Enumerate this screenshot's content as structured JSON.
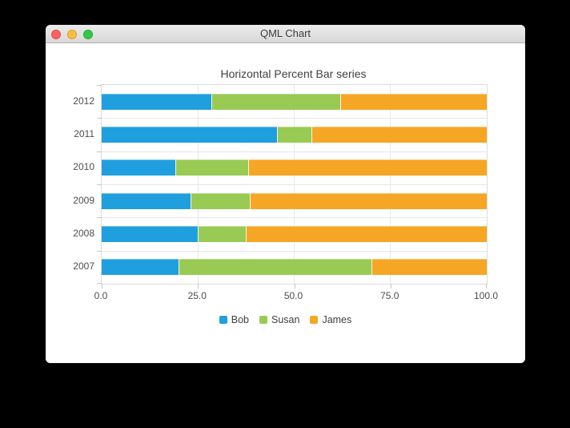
{
  "window": {
    "title": "QML Chart",
    "traffic_lights": [
      {
        "name": "close",
        "color": "#fc615d"
      },
      {
        "name": "minimize",
        "color": "#fdbc40"
      },
      {
        "name": "zoom",
        "color": "#34c749"
      }
    ]
  },
  "chart_data": {
    "type": "bar",
    "orientation": "horizontal-percent-stacked",
    "title": "Horizontal Percent Bar series",
    "categories": [
      "2012",
      "2011",
      "2010",
      "2009",
      "2008",
      "2007"
    ],
    "series": [
      {
        "name": "Bob",
        "color": "#209fdf",
        "values": [
          6,
          5,
          4,
          3,
          2,
          2
        ]
      },
      {
        "name": "Susan",
        "color": "#99ca53",
        "values": [
          7,
          1,
          4,
          2,
          1,
          5
        ]
      },
      {
        "name": "James",
        "color": "#f6a625",
        "values": [
          8,
          5,
          13,
          8,
          5,
          3
        ]
      }
    ],
    "percentages": [
      {
        "category": "2012",
        "Bob": 28.6,
        "Susan": 33.3,
        "James": 38.1
      },
      {
        "category": "2011",
        "Bob": 45.5,
        "Susan": 9.1,
        "James": 45.5
      },
      {
        "category": "2010",
        "Bob": 19.0,
        "Susan": 19.0,
        "James": 61.9
      },
      {
        "category": "2009",
        "Bob": 23.1,
        "Susan": 15.4,
        "James": 61.5
      },
      {
        "category": "2008",
        "Bob": 25.0,
        "Susan": 12.5,
        "James": 62.5
      },
      {
        "category": "2007",
        "Bob": 20.0,
        "Susan": 50.0,
        "James": 30.0
      }
    ],
    "x_ticks": [
      "0.0",
      "25.0",
      "50.0",
      "75.0",
      "100.0"
    ],
    "xlim": [
      0,
      100
    ],
    "grid": true,
    "legend_position": "bottom"
  }
}
